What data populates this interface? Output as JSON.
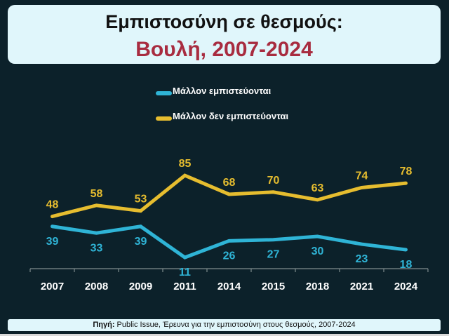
{
  "header": {
    "title_line1": "Εμπιστοσύνη σε θεσμούς:",
    "title_line2": "Βουλή, 2007-2024"
  },
  "legend": [
    {
      "label": "Μάλλον εμπιστεύονται",
      "color": "#2fb4d6"
    },
    {
      "label": "Μάλλον δεν εμπιστεύονται",
      "color": "#e6bd2f"
    }
  ],
  "source": {
    "prefix": "Πηγή:",
    "text": " Public Issue, Έρευνα για την εμπιστοσύνη στους θεσμούς, 2007-2024"
  },
  "chart_data": {
    "type": "line",
    "title": "Εμπιστοσύνη σε θεσμούς: Βουλή, 2007-2024",
    "xlabel": "",
    "ylabel": "",
    "categories": [
      "2007",
      "2008",
      "2009",
      "2011",
      "2014",
      "2015",
      "2018",
      "2021",
      "2024"
    ],
    "series": [
      {
        "name": "Μάλλον εμπιστεύονται",
        "color": "#2fb4d6",
        "values": [
          39,
          33,
          39,
          11,
          26,
          27,
          30,
          23,
          18
        ]
      },
      {
        "name": "Μάλλον δεν εμπιστεύονται",
        "color": "#e6bd2f",
        "values": [
          48,
          58,
          53,
          85,
          68,
          70,
          63,
          74,
          78
        ]
      }
    ],
    "grid": false,
    "legend_position": "top",
    "data_labels": true
  }
}
